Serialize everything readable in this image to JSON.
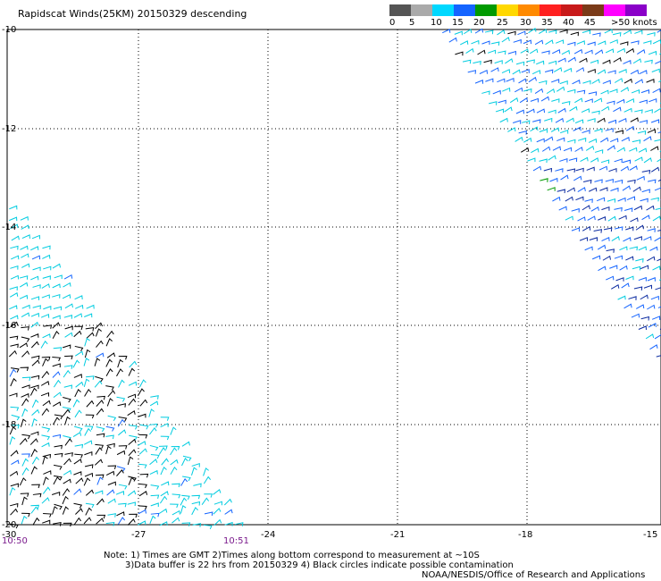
{
  "title": "Rapidscat Winds(25KM) 20150329 descending",
  "legend": {
    "labels": [
      "0",
      "5",
      "10",
      "15",
      "20",
      "25",
      "30",
      "35",
      "40",
      "45",
      ">50 knots"
    ],
    "colors": [
      "#555555",
      "#aaaaaa",
      "#00d8ff",
      "#1464ff",
      "#009a00",
      "#ffd800",
      "#ff8a00",
      "#ff2020",
      "#c81a1a",
      "#7a3a18",
      "#ff00ff",
      "#8a00c8"
    ]
  },
  "axes": {
    "lat_ticks": [
      "-10",
      "-12",
      "-14",
      "-16",
      "-18",
      "-20"
    ],
    "lon_ticks": [
      "-30",
      "-27",
      "-24",
      "-21",
      "-18",
      "-15"
    ]
  },
  "times": [
    "10:50",
    "10:51"
  ],
  "notes": [
    "Note: 1) Times are GMT 2)Times along bottom correspond to measurement at ~10S",
    "3)Data buffer is 22 hrs from 20150329 4) Black circles indicate possible contamination",
    "NOAA/NESDIS/Office of Research and Applications"
  ],
  "swaths": {
    "west": {
      "wind_speed_knots": [
        0,
        15
      ],
      "colors": [
        "#000000",
        "#00cce0",
        "#1464ff"
      ]
    },
    "east": {
      "wind_speed_knots": [
        10,
        20
      ],
      "colors": [
        "#1464ff",
        "#00cce0",
        "#0a2aa0",
        "#000000",
        "#009a00"
      ]
    }
  }
}
